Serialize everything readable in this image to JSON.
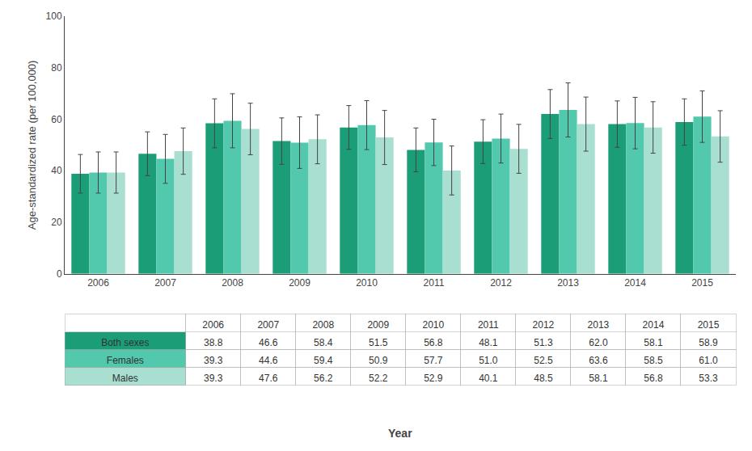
{
  "chart_data": {
    "type": "bar",
    "categories": [
      "2006",
      "2007",
      "2008",
      "2009",
      "2010",
      "2011",
      "2012",
      "2013",
      "2014",
      "2015"
    ],
    "series": [
      {
        "name": "Both sexes",
        "color": "#1b9e78",
        "values": [
          38.8,
          46.6,
          58.4,
          51.5,
          56.8,
          48.1,
          51.3,
          62.0,
          58.1,
          58.9
        ],
        "value_labels": [
          "38.8",
          "46.6",
          "58.4",
          "51.5",
          "56.8",
          "48.1",
          "51.3",
          "62.0",
          "58.1",
          "58.9"
        ],
        "errors": [
          7.5,
          8.5,
          9.5,
          9.0,
          8.5,
          8.5,
          8.5,
          9.5,
          9.0,
          9.0
        ]
      },
      {
        "name": "Females",
        "color": "#52c9ad",
        "values": [
          39.3,
          44.6,
          59.4,
          50.9,
          57.7,
          51.0,
          52.5,
          63.6,
          58.5,
          61.0
        ],
        "value_labels": [
          "39.3",
          "44.6",
          "59.4",
          "50.9",
          "57.7",
          "51.0",
          "52.5",
          "63.6",
          "58.5",
          "61.0"
        ],
        "errors": [
          8.0,
          9.5,
          10.5,
          10.0,
          9.5,
          9.0,
          9.5,
          10.5,
          10.0,
          10.0
        ]
      },
      {
        "name": "Males",
        "color": "#a8dfd0",
        "values": [
          39.3,
          47.6,
          56.2,
          52.2,
          52.9,
          40.1,
          48.5,
          58.1,
          56.8,
          53.3
        ],
        "value_labels": [
          "39.3",
          "47.6",
          "56.2",
          "52.2",
          "52.9",
          "40.1",
          "48.5",
          "58.1",
          "56.8",
          "53.3"
        ],
        "errors": [
          8.0,
          9.0,
          10.0,
          9.5,
          10.5,
          9.5,
          9.5,
          10.5,
          10.0,
          10.0
        ]
      }
    ],
    "xlabel": "Year",
    "ylabel": "Age-standardized rate (per 100,000)",
    "ylim": [
      0,
      100
    ],
    "yticks": [
      0,
      20,
      40,
      60,
      80,
      100
    ],
    "grid": false
  }
}
